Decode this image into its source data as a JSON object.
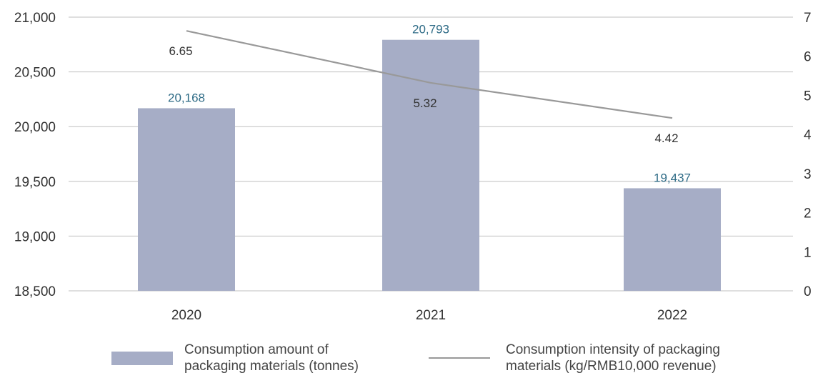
{
  "chart_data": {
    "type": "bar",
    "categories": [
      "2020",
      "2021",
      "2022"
    ],
    "series": [
      {
        "name": "Consumption amount of packaging materials (tonnes)",
        "type": "bar",
        "axis": "left",
        "values": [
          20168,
          20793,
          19437
        ],
        "labels": [
          "20,168",
          "20,793",
          "19,437"
        ],
        "color": "#a6adc6"
      },
      {
        "name": "Consumption intensity of packaging materials (kg/RMB10,000 revenue)",
        "type": "line",
        "axis": "right",
        "values": [
          6.65,
          5.32,
          4.42
        ],
        "labels": [
          "6.65",
          "5.32",
          "4.42"
        ],
        "color": "#999999"
      }
    ],
    "y_left": {
      "ylim": [
        18500,
        21000
      ],
      "ticks": [
        18500,
        19000,
        19500,
        20000,
        20500,
        21000
      ],
      "tick_labels": [
        "18,500",
        "19,000",
        "19,500",
        "20,000",
        "20,500",
        "21,000"
      ]
    },
    "y_right": {
      "ylim": [
        0,
        7
      ],
      "ticks": [
        0,
        1,
        2,
        3,
        4,
        5,
        6,
        7
      ],
      "tick_labels": [
        "0",
        "1",
        "2",
        "3",
        "4",
        "5",
        "6",
        "7"
      ]
    },
    "grid": true,
    "legend_position": "bottom",
    "bar_label_color": "#2e6b86",
    "gridline_color": "#bfbfbf",
    "title": "",
    "xlabel": "",
    "ylabel": ""
  },
  "legend": {
    "bar_label_line1": "Consumption amount of",
    "bar_label_line2": "packaging materials (tonnes)",
    "line_label_line1": "Consumption intensity of packaging",
    "line_label_line2": "materials (kg/RMB10,000 revenue)"
  }
}
